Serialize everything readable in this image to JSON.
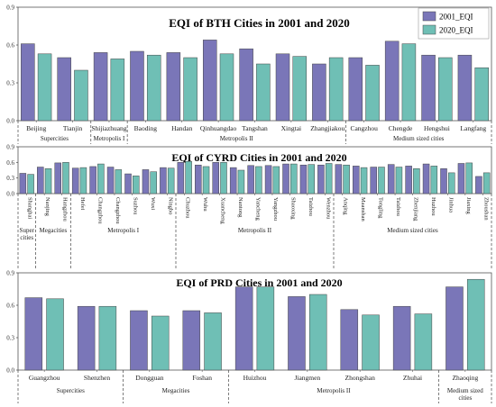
{
  "legend": [
    {
      "name": "2001_EQI",
      "color": "#7a76b8"
    },
    {
      "name": "2020_EQI",
      "color": "#6fbfb5"
    }
  ],
  "chart_data": [
    {
      "type": "bar",
      "title": "EQI of BTH Cities in 2001 and 2020",
      "ylim": [
        0,
        0.9
      ],
      "yticks": [
        "0.0",
        "0.3",
        "0.6",
        "0.9"
      ],
      "categories": [
        "Beijing",
        "Tianjin",
        "Shijiazhuang",
        "Baoding",
        "Handan",
        "Qinhuangdao",
        "Tangshan",
        "Xingtai",
        "Zhangjiakou",
        "Cangzhou",
        "Chengde",
        "Hengshui",
        "Langfang"
      ],
      "series": [
        {
          "name": "2001_EQI",
          "values": [
            0.61,
            0.5,
            0.54,
            0.55,
            0.54,
            0.64,
            0.57,
            0.53,
            0.45,
            0.5,
            0.63,
            0.52,
            0.52
          ]
        },
        {
          "name": "2020_EQI",
          "values": [
            0.53,
            0.4,
            0.49,
            0.52,
            0.5,
            0.53,
            0.45,
            0.51,
            0.5,
            0.44,
            0.61,
            0.5,
            0.42
          ]
        }
      ],
      "groups": [
        {
          "label": "Supercities",
          "count": 2
        },
        {
          "label": "Metropolis I",
          "count": 1
        },
        {
          "label": "Metropolis II",
          "count": 6
        },
        {
          "label": "Medium sized cities",
          "count": 4
        }
      ]
    },
    {
      "type": "bar",
      "title": "EQI of  CYRD Cities in 2001 and 2020",
      "ylim": [
        0,
        0.9
      ],
      "yticks": [
        "0.0",
        "0.3",
        "0.6",
        "0.9"
      ],
      "categories": [
        "Shanghai",
        "Nanjing",
        "Hangzhou",
        "Hefei",
        "Changzhou",
        "Changzhou",
        "Suzhou",
        "Wuxi",
        "Ningbo",
        "Chuzhou",
        "Wuhu",
        "Xuancheng",
        "Nantong",
        "Yancheng",
        "Yangzhou",
        "Shaoxing",
        "Taizhou",
        "Wenzhou",
        "Anqing",
        "Maanshan",
        "Tongling",
        "Taizhou",
        "Zhenjiang",
        "Huzhou",
        "Jinhua",
        "Jiaxing",
        "Zhoushan"
      ],
      "series": [
        {
          "name": "2001_EQI",
          "values": [
            0.39,
            0.51,
            0.59,
            0.49,
            0.52,
            0.51,
            0.38,
            0.46,
            0.5,
            0.6,
            0.55,
            0.6,
            0.5,
            0.54,
            0.54,
            0.57,
            0.55,
            0.55,
            0.56,
            0.53,
            0.51,
            0.56,
            0.53,
            0.57,
            0.48,
            0.58,
            0.33
          ]
        },
        {
          "name": "2020_EQI",
          "values": [
            0.37,
            0.48,
            0.6,
            0.5,
            0.57,
            0.46,
            0.34,
            0.42,
            0.49,
            0.62,
            0.52,
            0.6,
            0.45,
            0.52,
            0.52,
            0.57,
            0.56,
            0.58,
            0.55,
            0.5,
            0.51,
            0.51,
            0.48,
            0.53,
            0.4,
            0.59,
            0.4
          ]
        }
      ],
      "groups": [
        {
          "label": "Super\ncities",
          "count": 1
        },
        {
          "label": "Megacities",
          "count": 2
        },
        {
          "label": "Metropolis I",
          "count": 6
        },
        {
          "label": "Metropolis II",
          "count": 9
        },
        {
          "label": "Medium sized cities",
          "count": 9
        }
      ]
    },
    {
      "type": "bar",
      "title": "EQI of PRD Cities in 2001 and 2020",
      "ylim": [
        0,
        0.9
      ],
      "yticks": [
        "0.0",
        "0.3",
        "0.6",
        "0.9"
      ],
      "categories": [
        "Guangzhou",
        "Shenzhen",
        "Dongguan",
        "Foshan",
        "Huizhou",
        "Jiangmen",
        "Zhongshan",
        "Zhuhai",
        "Zhaoqing"
      ],
      "series": [
        {
          "name": "2001_EQI",
          "values": [
            0.67,
            0.59,
            0.55,
            0.55,
            0.77,
            0.68,
            0.56,
            0.59,
            0.77
          ]
        },
        {
          "name": "2020_EQI",
          "values": [
            0.66,
            0.59,
            0.5,
            0.53,
            0.77,
            0.7,
            0.51,
            0.52,
            0.84
          ]
        }
      ],
      "groups": [
        {
          "label": "Supercities",
          "count": 2
        },
        {
          "label": "Megacities",
          "count": 2
        },
        {
          "label": "Metropolis II",
          "count": 4
        },
        {
          "label": "Medium sized\ncities",
          "count": 1
        }
      ]
    }
  ]
}
